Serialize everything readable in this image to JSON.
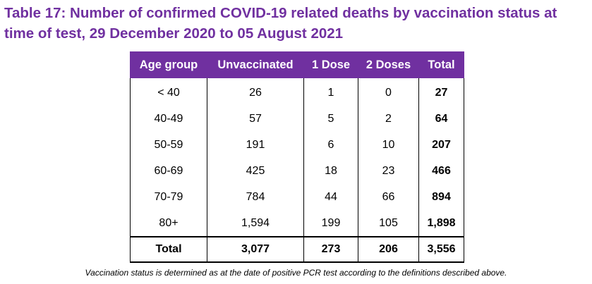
{
  "title": "Table 17: Number of confirmed COVID-19 related deaths by vaccination status at time of test, 29 December 2020 to 05 August 2021",
  "colors": {
    "header_bg": "#7030a0",
    "title": "#7030a0"
  },
  "table": {
    "headers": [
      "Age group",
      "Unvaccinated",
      "1 Dose",
      "2 Doses",
      "Total"
    ],
    "rows": [
      [
        "< 40",
        "26",
        "1",
        "0",
        "27"
      ],
      [
        "40-49",
        "57",
        "5",
        "2",
        "64"
      ],
      [
        "50-59",
        "191",
        "6",
        "10",
        "207"
      ],
      [
        "60-69",
        "425",
        "18",
        "23",
        "466"
      ],
      [
        "70-79",
        "784",
        "44",
        "66",
        "894"
      ],
      [
        "80+",
        "1,594",
        "199",
        "105",
        "1,898"
      ]
    ],
    "total_row": [
      "Total",
      "3,077",
      "273",
      "206",
      "3,556"
    ]
  },
  "footnote": "Vaccination status is determined as at the date of positive PCR test according to the definitions described above."
}
